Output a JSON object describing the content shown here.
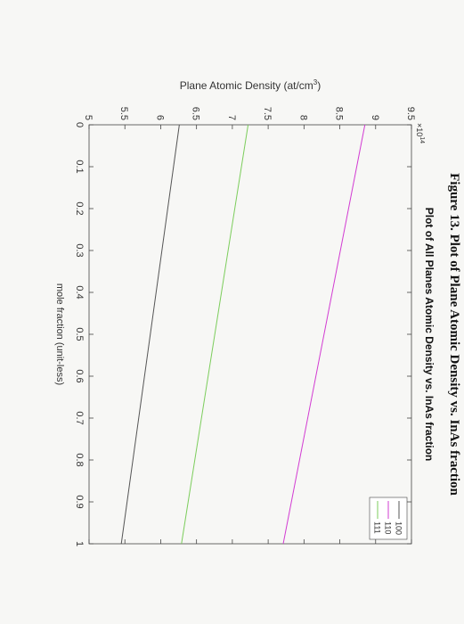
{
  "chart_data": {
    "type": "line",
    "title": "Plot of All Planes Atomic Density vs. InAs fraction",
    "caption": "Figure 13. Plot of Plane Atomic Density vs. InAs fraction",
    "xlabel": "mole fraction (unit-less)",
    "ylabel": {
      "text": "Plane Atomic Density (at/cm",
      "superscript": "3",
      "end": ")"
    },
    "y_multiplier": {
      "base": "×10",
      "exponent": "14"
    },
    "x": [
      0,
      1
    ],
    "series": [
      {
        "name": "100",
        "color": "#555555",
        "values": [
          6.26,
          5.45
        ]
      },
      {
        "name": "110",
        "color": "#d23cd2",
        "values": [
          8.85,
          7.71
        ]
      },
      {
        "name": "111",
        "color": "#7ccd5c",
        "values": [
          7.22,
          6.29
        ]
      }
    ],
    "xlim": [
      0,
      1
    ],
    "xticks": [
      0,
      0.1,
      0.2,
      0.3,
      0.4,
      0.5,
      0.6,
      0.7,
      0.8,
      0.9,
      1
    ],
    "ylim": [
      5,
      9.5
    ],
    "yticks": [
      5,
      5.5,
      6,
      6.5,
      7,
      7.5,
      8,
      8.5,
      9,
      9.5
    ],
    "grid": false,
    "legend": "upper right"
  }
}
